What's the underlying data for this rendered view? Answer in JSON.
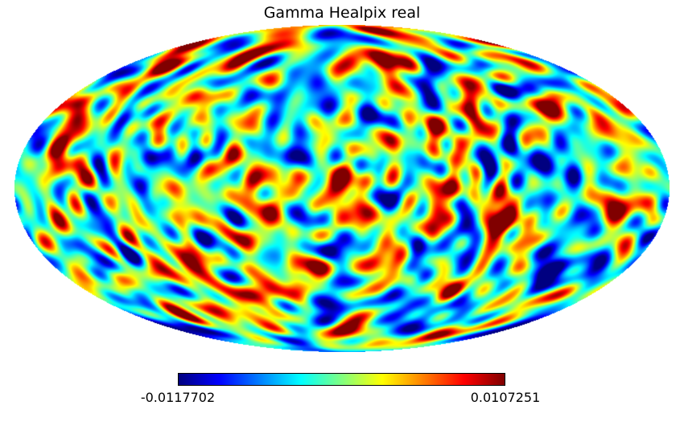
{
  "chart_data": {
    "type": "heatmap",
    "projection": "mollweide",
    "title": "Gamma Healpix real",
    "colormap": "jet",
    "colorbar": {
      "min_label": "-0.0117702",
      "max_label": "0.0107251",
      "vmin": -0.0117702,
      "vmax": 0.0107251,
      "colors": [
        "#00007f",
        "#0000ff",
        "#0080ff",
        "#00ffff",
        "#80ff80",
        "#ffff00",
        "#ff8000",
        "#ff0000",
        "#7f0000"
      ]
    },
    "background": "#ffffff",
    "grid": false
  }
}
